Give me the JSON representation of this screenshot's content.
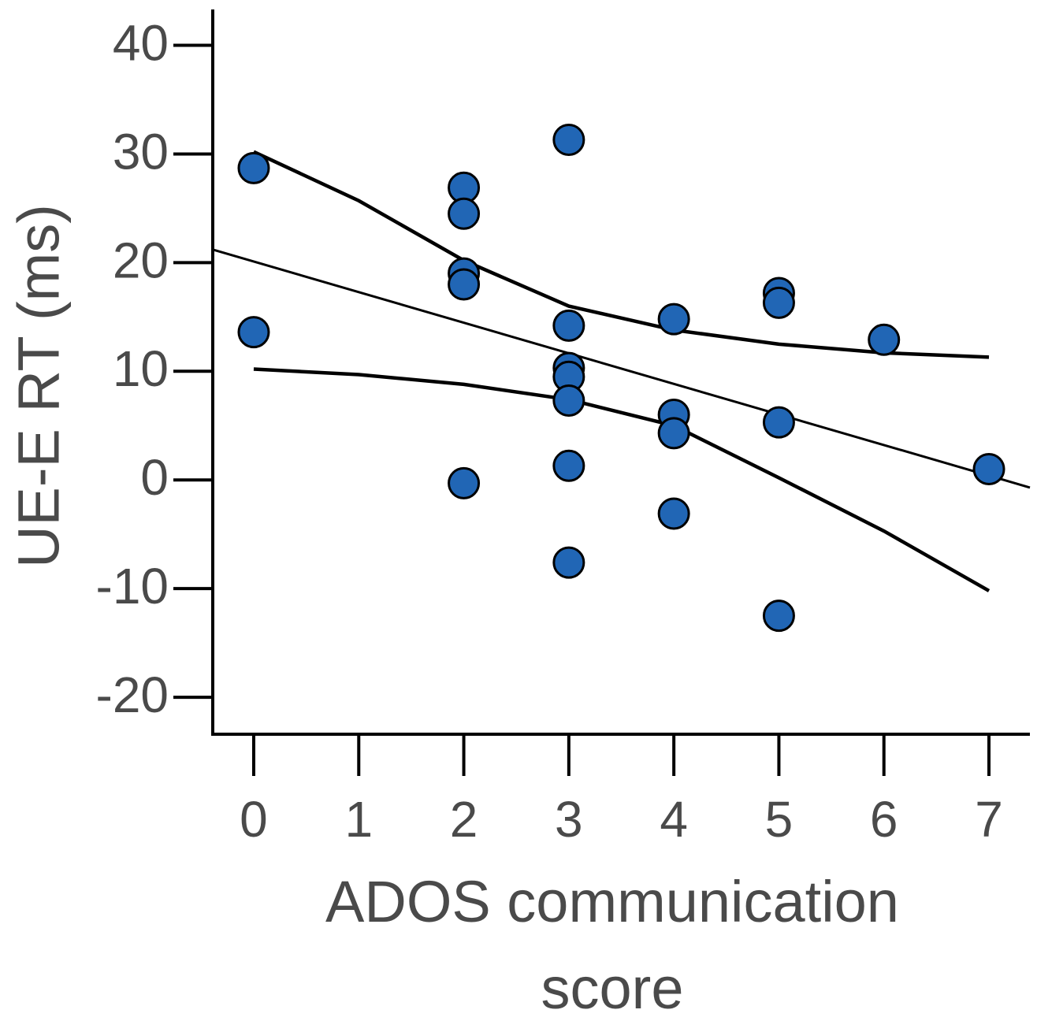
{
  "chart_data": {
    "type": "scatter",
    "x_label": "ADOS communication score",
    "y_label": "UE-E RT (ms)",
    "xlim": [
      -0.39,
      7.39
    ],
    "ylim": [
      -23.4,
      43.3
    ],
    "xticks": [
      0,
      1,
      2,
      3,
      4,
      5,
      6,
      7
    ],
    "yticks": [
      -20,
      -10,
      0,
      10,
      20,
      30,
      40
    ],
    "series": [
      {
        "color": "#2166b5",
        "x": [
          0,
          0,
          2,
          2,
          2,
          2,
          2,
          3,
          3,
          3,
          3,
          3,
          3,
          3,
          4,
          4,
          4,
          4,
          5,
          5,
          5,
          5,
          6,
          7
        ],
        "values": [
          28.7,
          13.6,
          26.9,
          24.5,
          19.0,
          18.0,
          -0.3,
          31.3,
          14.2,
          10.3,
          9.5,
          7.3,
          1.3,
          -7.6,
          14.8,
          6.0,
          4.3,
          -3.1,
          17.2,
          16.3,
          5.3,
          -12.5,
          12.9,
          1.0
        ]
      }
    ],
    "fit_lines": [
      {
        "color": "#000000",
        "x": [
          -0.39,
          7.39
        ],
        "values": [
          21.2,
          -0.7
        ]
      },
      {
        "color": "#000000",
        "x": [
          0,
          1,
          2,
          3,
          4,
          5,
          6,
          7
        ],
        "values": [
          30.2,
          25.7,
          20.2,
          16.0,
          13.8,
          12.5,
          11.7,
          11.3
        ]
      },
      {
        "color": "#000000",
        "x": [
          0,
          1,
          2,
          3,
          4,
          5,
          6,
          7
        ],
        "values": [
          10.2,
          9.7,
          8.8,
          7.4,
          5.0,
          0.2,
          -4.7,
          -10.2
        ]
      }
    ]
  }
}
